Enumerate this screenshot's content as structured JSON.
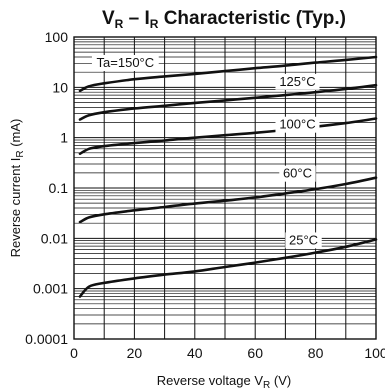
{
  "chart_data": {
    "type": "line",
    "title": {
      "v": "V",
      "v_sub": "R",
      "dash": " – ",
      "i": "I",
      "i_sub": "R",
      "rest": " Characteristic (Typ.)"
    },
    "xlabel": {
      "main": "Reverse voltage  V",
      "sub": "R",
      "unit": " (V)"
    },
    "ylabel": {
      "main": "Reverse current  I",
      "sub": "R",
      "unit": " (mA)"
    },
    "x_axis": {
      "min": 0,
      "max": 100,
      "scale": "linear",
      "ticks": [
        0,
        20,
        40,
        60,
        80,
        100
      ],
      "tick_labels": [
        "0",
        "20",
        "40",
        "60",
        "80",
        "100"
      ]
    },
    "y_axis": {
      "min": 0.0001,
      "max": 100,
      "scale": "log",
      "ticks": [
        0.0001,
        0.001,
        0.01,
        0.1,
        1,
        10,
        100
      ],
      "tick_labels": [
        "0.0001",
        "0.001",
        "0.01",
        "0.1",
        "1",
        "10",
        "100"
      ]
    },
    "grid": true,
    "series": [
      {
        "name": "Ta=150°C",
        "x": [
          2,
          5,
          10,
          20,
          30,
          40,
          50,
          60,
          70,
          80,
          90,
          100
        ],
        "y": [
          8.5,
          10.5,
          12,
          14.5,
          16.5,
          18.5,
          21,
          24,
          27,
          31,
          35,
          40
        ]
      },
      {
        "name": "125°C",
        "x": [
          2,
          5,
          10,
          20,
          30,
          40,
          50,
          60,
          70,
          80,
          90,
          100
        ],
        "y": [
          2.3,
          2.8,
          3.2,
          3.8,
          4.3,
          4.9,
          5.5,
          6.2,
          7,
          8,
          9.3,
          11
        ]
      },
      {
        "name": "100°C",
        "x": [
          2,
          5,
          10,
          20,
          30,
          40,
          50,
          60,
          70,
          80,
          90,
          100
        ],
        "y": [
          0.48,
          0.6,
          0.68,
          0.78,
          0.88,
          1.0,
          1.12,
          1.25,
          1.42,
          1.65,
          1.95,
          2.4
        ]
      },
      {
        "name": "60°C",
        "x": [
          2,
          5,
          10,
          20,
          30,
          40,
          50,
          60,
          70,
          80,
          90,
          100
        ],
        "y": [
          0.021,
          0.026,
          0.03,
          0.036,
          0.042,
          0.049,
          0.056,
          0.065,
          0.078,
          0.095,
          0.12,
          0.16
        ]
      },
      {
        "name": "25°C",
        "x": [
          2,
          5,
          10,
          20,
          30,
          40,
          50,
          60,
          70,
          80,
          90,
          100
        ],
        "y": [
          0.0007,
          0.0011,
          0.0013,
          0.0016,
          0.0019,
          0.0022,
          0.0027,
          0.0033,
          0.0041,
          0.0052,
          0.0068,
          0.0095
        ]
      }
    ]
  }
}
